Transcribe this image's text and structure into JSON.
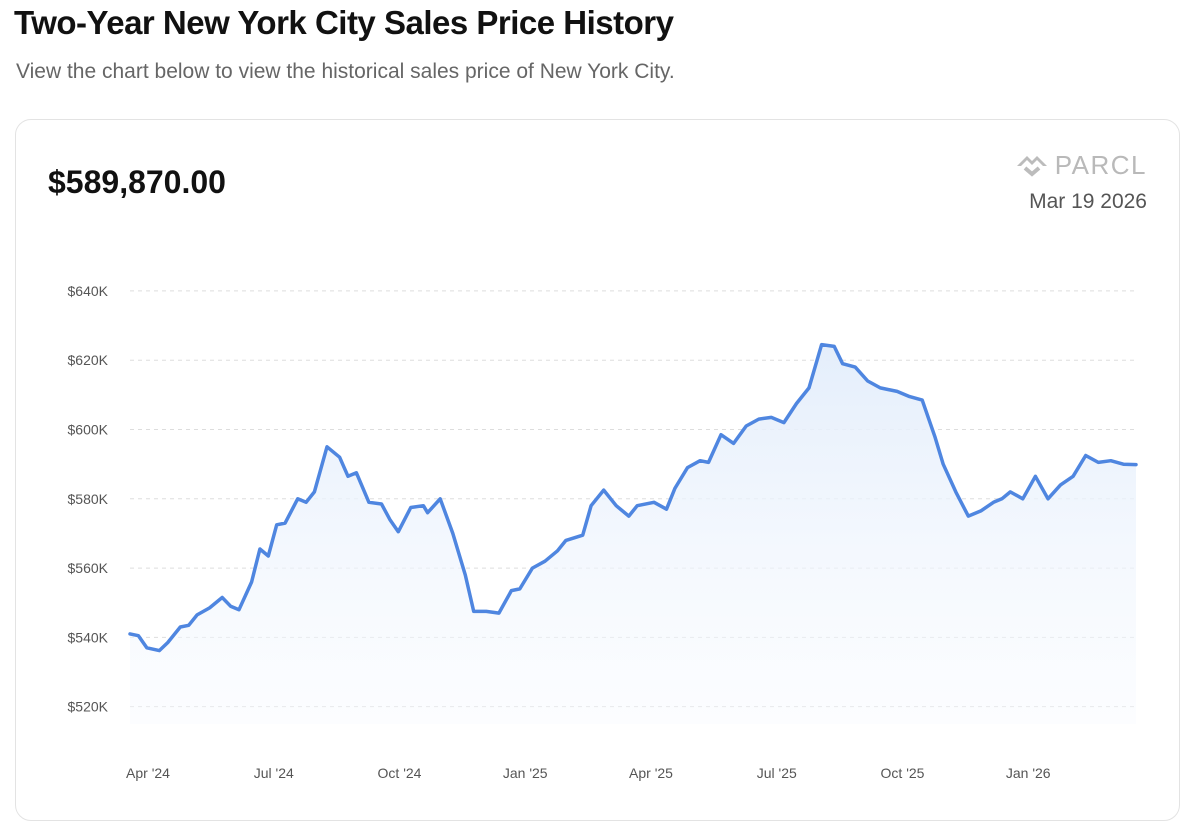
{
  "header": {
    "title": "Two-Year New York City Sales Price History",
    "subtitle": "View the chart below to view the historical sales price of New York City."
  },
  "card": {
    "current_price": "$589,870.00",
    "brand_name": "PARCL",
    "as_of_date": "Mar 19 2026"
  },
  "colors": {
    "line": "#4f86e0",
    "fill_top": "#e4eefb",
    "grid": "#dddddd"
  },
  "chart_data": {
    "type": "area",
    "title": "",
    "xlabel": "",
    "ylabel": "",
    "ylim": [
      515000,
      642000
    ],
    "y_ticks": [
      520000,
      540000,
      560000,
      580000,
      600000,
      620000,
      640000
    ],
    "y_tick_labels": [
      "$520K",
      "$540K",
      "$560K",
      "$580K",
      "$600K",
      "$620K",
      "$640K"
    ],
    "x_range": [
      0,
      24
    ],
    "x_ticks": [
      0,
      3,
      6,
      9,
      12,
      15,
      18,
      21
    ],
    "x_tick_labels": [
      "Apr '24",
      "Jul '24",
      "Oct '24",
      "Jan '25",
      "Apr '25",
      "Jul '25",
      "Oct '25",
      "Jan '26"
    ],
    "series": [
      {
        "name": "Sales Price",
        "x": [
          0,
          0.2,
          0.4,
          0.7,
          0.9,
          1.2,
          1.4,
          1.6,
          1.9,
          2.2,
          2.4,
          2.6,
          2.9,
          3.1,
          3.3,
          3.5,
          3.7,
          4.0,
          4.2,
          4.4,
          4.7,
          5.0,
          5.2,
          5.4,
          5.7,
          6.0,
          6.2,
          6.4,
          6.7,
          7.0,
          7.1,
          7.4,
          7.7,
          8.0,
          8.2,
          8.5,
          8.8,
          9.1,
          9.3,
          9.6,
          9.9,
          10.2,
          10.4,
          10.8,
          11.0,
          11.3,
          11.6,
          11.9,
          12.1,
          12.5,
          12.8,
          13.0,
          13.3,
          13.6,
          13.8,
          14.1,
          14.4,
          14.7,
          15.0,
          15.3,
          15.6,
          15.9,
          16.2,
          16.5,
          16.8,
          17.0,
          17.3,
          17.6,
          17.9,
          18.3,
          18.6,
          18.9,
          19.2,
          19.4,
          19.7,
          20.0,
          20.3,
          20.6,
          20.8,
          21.0,
          21.3,
          21.6,
          21.9,
          22.2,
          22.5,
          22.8,
          23.1,
          23.4,
          23.7,
          24.0
        ],
        "values": [
          541000,
          540500,
          537000,
          536200,
          538500,
          543000,
          543500,
          546500,
          548500,
          551500,
          549000,
          548000,
          556000,
          565500,
          563500,
          572500,
          573000,
          580000,
          579000,
          582000,
          595000,
          592000,
          586500,
          587500,
          579000,
          578500,
          574000,
          570500,
          577500,
          578000,
          576000,
          580000,
          570000,
          558000,
          547500,
          547500,
          547000,
          553500,
          554000,
          560000,
          562000,
          565000,
          568000,
          569500,
          578000,
          582500,
          578000,
          575000,
          578000,
          579000,
          577000,
          583000,
          589000,
          591000,
          590500,
          598500,
          596000,
          601000,
          603000,
          603500,
          602000,
          607500,
          612000,
          624500,
          624000,
          619000,
          618000,
          614000,
          612000,
          611000,
          609500,
          608500,
          598000,
          590000,
          582000,
          575000,
          576500,
          579000,
          580000,
          582000,
          580000,
          586500,
          580000,
          584000,
          586500,
          592500,
          590500,
          591000,
          590000,
          589870
        ]
      }
    ]
  }
}
